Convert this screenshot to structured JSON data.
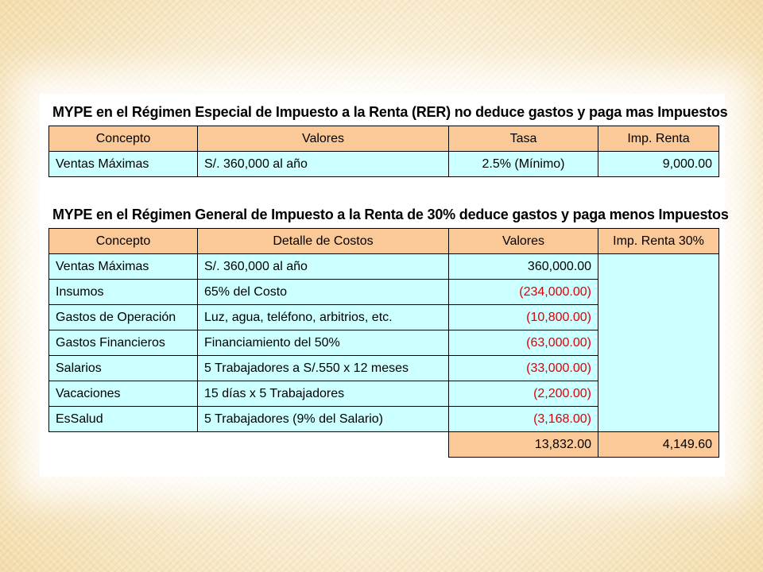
{
  "table1": {
    "title": "MYPE en el Régimen Especial de Impuesto a la Renta (RER) no deduce gastos y paga mas Impuestos",
    "headers": [
      "Concepto",
      "Valores",
      "Tasa",
      "Imp. Renta"
    ],
    "row": [
      "Ventas Máximas",
      "S/. 360,000 al año",
      "2.5% (Mínimo)",
      "9,000.00"
    ]
  },
  "table2": {
    "title": "MYPE en el Régimen General de Impuesto a la Renta de 30% deduce gastos y paga menos Impuestos",
    "headers": [
      "Concepto",
      "Detalle de Costos",
      "Valores",
      "Imp. Renta 30%"
    ],
    "rows": [
      {
        "concepto": "Ventas Máximas",
        "detalle": "S/. 360,000 al año",
        "valor": "360,000.00",
        "negative": false
      },
      {
        "concepto": "Insumos",
        "detalle": "65% del Costo",
        "valor": "(234,000.00)",
        "negative": true
      },
      {
        "concepto": "Gastos de Operación",
        "detalle": "Luz, agua, teléfono, arbitrios, etc.",
        "valor": "(10,800.00)",
        "negative": true
      },
      {
        "concepto": "Gastos Financieros",
        "detalle": "Financiamiento del 50%",
        "valor": "(63,000.00)",
        "negative": true
      },
      {
        "concepto": "Salarios",
        "detalle": "5 Trabajadores a S/.550 x 12 meses",
        "valor": "(33,000.00)",
        "negative": true
      },
      {
        "concepto": "Vacaciones",
        "detalle": "15 días x 5 Trabajadores",
        "valor": "(2,200.00)",
        "negative": true
      },
      {
        "concepto": "EsSalud",
        "detalle": "5 Trabajadores (9% del Salario)",
        "valor": "(3,168.00)",
        "negative": true
      }
    ],
    "total": {
      "valor": "13,832.00",
      "impuesto": "4,149.60"
    },
    "negative_color": "#e00000"
  },
  "colors": {
    "header_fill": "#fbc898",
    "cell_fill": "#ccffff"
  }
}
